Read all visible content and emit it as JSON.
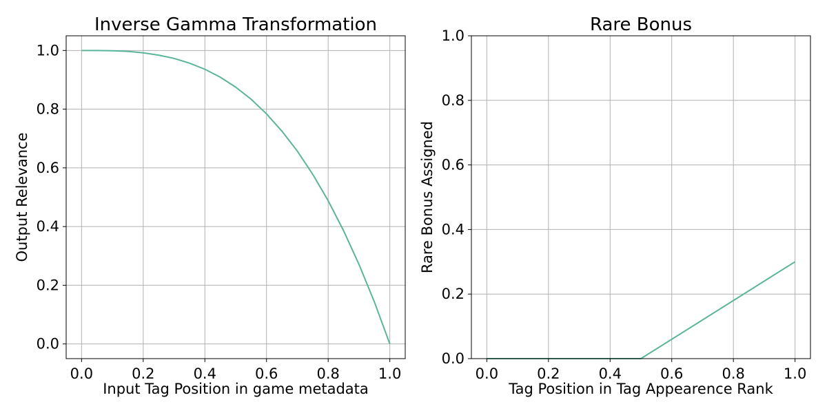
{
  "colors": {
    "series": "#5ab49a"
  },
  "chart_data": [
    {
      "type": "line",
      "title": "Inverse Gamma Transformation",
      "xlabel": "Input Tag Position in game metadata",
      "ylabel": "Output Relevance",
      "xlim": [
        -0.05,
        1.05
      ],
      "ylim": [
        -0.05,
        1.05
      ],
      "xticks": [
        0.0,
        0.2,
        0.4,
        0.6,
        0.8,
        1.0
      ],
      "yticks": [
        0.0,
        0.2,
        0.4,
        0.6,
        0.8,
        1.0
      ],
      "xtick_labels": [
        "0.0",
        "0.2",
        "0.4",
        "0.6",
        "0.8",
        "1.0"
      ],
      "ytick_labels": [
        "0.0",
        "0.2",
        "0.4",
        "0.6",
        "0.8",
        "1.0"
      ],
      "grid": true,
      "series": [
        {
          "x": [
            0.0,
            0.05,
            0.1,
            0.15,
            0.2,
            0.25,
            0.3,
            0.35,
            0.4,
            0.45,
            0.5,
            0.55,
            0.6,
            0.65,
            0.7,
            0.75,
            0.8,
            0.85,
            0.9,
            0.95,
            1.0
          ],
          "y": [
            1.0,
            1.0,
            0.999,
            0.997,
            0.992,
            0.984,
            0.973,
            0.957,
            0.936,
            0.909,
            0.875,
            0.834,
            0.784,
            0.725,
            0.657,
            0.578,
            0.488,
            0.386,
            0.271,
            0.143,
            0.0
          ]
        }
      ]
    },
    {
      "type": "line",
      "title": "Rare Bonus",
      "xlabel": "Tag Position in Tag Appearence Rank",
      "ylabel": "Rare Bonus Assigned",
      "xlim": [
        -0.05,
        1.05
      ],
      "ylim": [
        0.0,
        1.0
      ],
      "xticks": [
        0.0,
        0.2,
        0.4,
        0.6,
        0.8,
        1.0
      ],
      "yticks": [
        0.0,
        0.2,
        0.4,
        0.6,
        0.8,
        1.0
      ],
      "xtick_labels": [
        "0.0",
        "0.2",
        "0.4",
        "0.6",
        "0.8",
        "1.0"
      ],
      "ytick_labels": [
        "0.0",
        "0.2",
        "0.4",
        "0.6",
        "0.8",
        "1.0"
      ],
      "grid": true,
      "series": [
        {
          "x": [
            0.0,
            0.5,
            1.0
          ],
          "y": [
            0.0,
            0.0,
            0.3
          ]
        }
      ]
    }
  ]
}
